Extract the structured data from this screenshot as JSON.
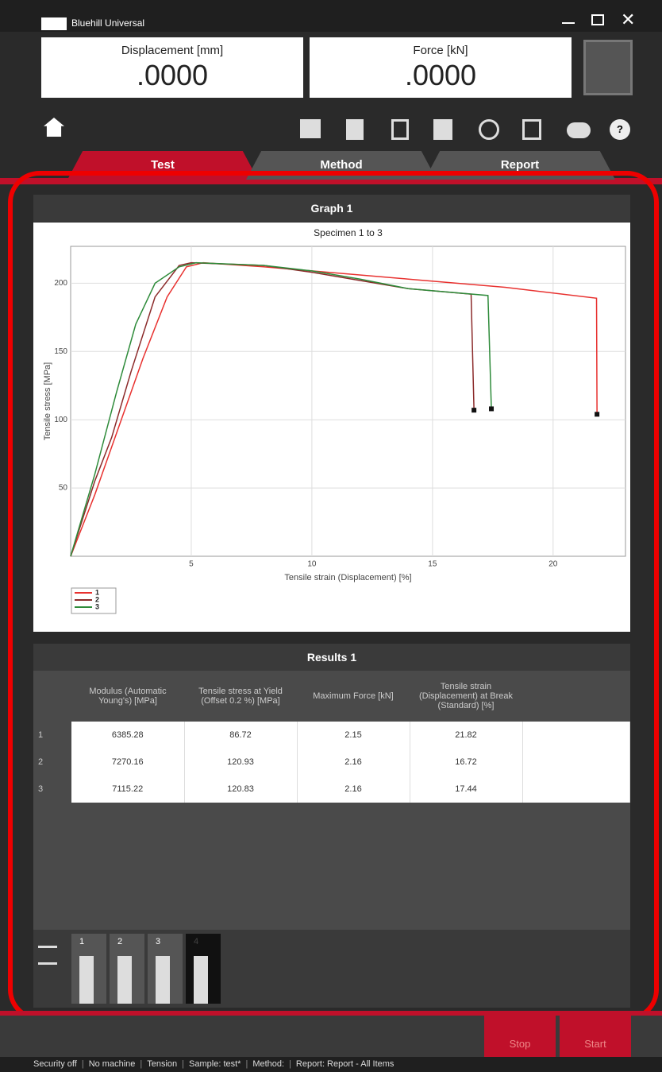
{
  "app": {
    "title": "Bluehill Universal",
    "readouts": [
      {
        "label": "Displacement [mm]",
        "value": ".0000"
      },
      {
        "label": "Force [kN]",
        "value": ".0000"
      }
    ],
    "help": "?",
    "tabs": [
      "Test",
      "Method",
      "Report"
    ]
  },
  "graph_panel": {
    "title": "Graph 1"
  },
  "chart_data": {
    "type": "line",
    "title": "Specimen 1 to 3",
    "x_label": "Tensile strain (Displacement) [%]",
    "y_label": "Tensile stress [MPa]",
    "xlim": [
      0,
      23
    ],
    "ylim": [
      0,
      227
    ],
    "xticks": [
      5,
      10,
      15,
      20
    ],
    "yticks": [
      50,
      100,
      150,
      200
    ],
    "grid": true,
    "series": [
      {
        "name": "1",
        "color": "#e8312f",
        "x": [
          0,
          1,
          2,
          3,
          4,
          4.8,
          5.5,
          8,
          10,
          14,
          18,
          21.8,
          21.82
        ],
        "values": [
          0,
          45,
          95,
          145,
          190,
          212,
          215,
          212,
          209,
          203,
          197,
          189,
          104
        ]
      },
      {
        "name": "2",
        "color": "#8b2a2a",
        "x": [
          0,
          1,
          1.7,
          2.5,
          3.5,
          4.5,
          5,
          8,
          10,
          12,
          14,
          16.6,
          16.72
        ],
        "values": [
          0,
          55,
          87,
          135,
          190,
          213,
          215,
          213,
          208,
          202,
          196,
          192,
          107
        ]
      },
      {
        "name": "3",
        "color": "#2e8b3a",
        "x": [
          0,
          1,
          1.9,
          2.7,
          3.5,
          4.5,
          5.2,
          8,
          10,
          12,
          14,
          17.3,
          17.44
        ],
        "values": [
          0,
          60,
          120,
          170,
          200,
          212,
          215,
          213,
          209,
          203,
          196,
          191,
          108
        ]
      }
    ]
  },
  "results_panel": {
    "title": "Results 1"
  },
  "table": {
    "headers": [
      "Modulus (Automatic Young's) [MPa]",
      "Tensile stress at Yield (Offset 0.2 %) [MPa]",
      "Maximum Force [kN]",
      "Tensile strain (Displacement) at Break (Standard) [%]"
    ],
    "rows": [
      [
        "1",
        "6385.28",
        "86.72",
        "2.15",
        "21.82"
      ],
      [
        "2",
        "7270.16",
        "120.93",
        "2.16",
        "16.72"
      ],
      [
        "3",
        "7115.22",
        "120.83",
        "2.16",
        "17.44"
      ]
    ]
  },
  "specimens": [
    "1",
    "2",
    "3",
    "4"
  ],
  "buttons": [
    "Stop",
    "Start"
  ],
  "status_bar": [
    "Security off",
    "No machine",
    "Tension",
    "Sample: test*",
    "Method:",
    "Report: Report - All Items"
  ]
}
